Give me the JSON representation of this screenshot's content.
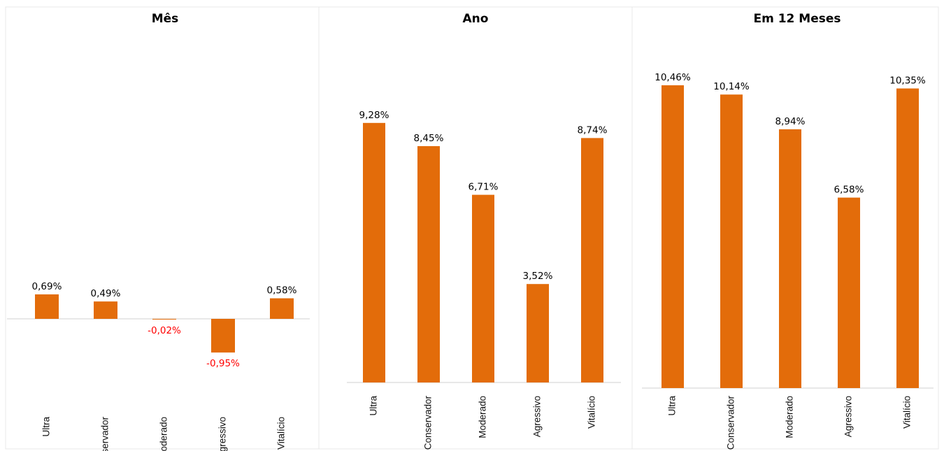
{
  "colors": {
    "bar": "#E36C0A",
    "negative_label": "#FF0000",
    "label": "#000000"
  },
  "chart_data": [
    {
      "type": "bar",
      "title": "Mês",
      "categories": [
        "Ultra",
        "Conservador",
        "Moderado",
        "Agressivo",
        "Vitalício"
      ],
      "values": [
        0.69,
        0.49,
        -0.02,
        -0.95,
        0.58
      ],
      "value_labels": [
        "0,69%",
        "0,49%",
        "-0,02%",
        "-0,95%",
        "0,58%"
      ],
      "unit": "%",
      "grid": false,
      "legend": "none"
    },
    {
      "type": "bar",
      "title": "Ano",
      "categories": [
        "Ultra",
        "Conservador",
        "Moderado",
        "Agressivo",
        "Vitalício"
      ],
      "values": [
        9.28,
        8.45,
        6.71,
        3.52,
        8.74
      ],
      "value_labels": [
        "9,28%",
        "8,45%",
        "6,71%",
        "3,52%",
        "8,74%"
      ],
      "unit": "%",
      "grid": false,
      "legend": "none"
    },
    {
      "type": "bar",
      "title": "Em 12 Meses",
      "categories": [
        "Ultra",
        "Conservador",
        "Moderado",
        "Agressivo",
        "Vitalício"
      ],
      "values": [
        10.46,
        10.14,
        8.94,
        6.58,
        10.35
      ],
      "value_labels": [
        "10,46%",
        "10,14%",
        "8,94%",
        "6,58%",
        "10,35%"
      ],
      "unit": "%",
      "grid": false,
      "legend": "none"
    }
  ]
}
